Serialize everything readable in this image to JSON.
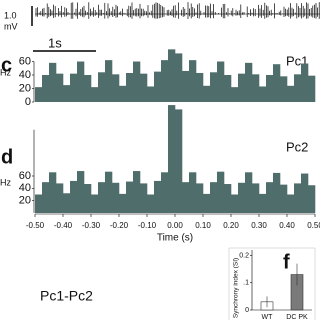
{
  "figure": {
    "scale_v_1": "1.0",
    "scale_v_2": "mV",
    "scale_t": "1s",
    "pair_label": "Pc1-Pc2"
  },
  "chart_data": [
    {
      "type": "histogram",
      "panel": "c",
      "label": "Pc1",
      "ylabel": "Hz",
      "color": "#4f6d6a",
      "bins": [
        -0.5,
        -0.475,
        -0.45,
        -0.425,
        -0.4,
        -0.375,
        -0.35,
        -0.325,
        -0.3,
        -0.275,
        -0.25,
        -0.225,
        -0.2,
        -0.175,
        -0.15,
        -0.125,
        -0.1,
        -0.075,
        -0.05,
        -0.025,
        0,
        0.025,
        0.05,
        0.075,
        0.1,
        0.125,
        0.15,
        0.175,
        0.2,
        0.225,
        0.25,
        0.275,
        0.3,
        0.325,
        0.35,
        0.375,
        0.4,
        0.425,
        0.45,
        0.475,
        0.5
      ],
      "values": [
        22,
        40,
        58,
        42,
        25,
        42,
        60,
        40,
        22,
        44,
        62,
        41,
        24,
        43,
        60,
        42,
        23,
        45,
        62,
        78,
        72,
        46,
        62,
        43,
        24,
        44,
        60,
        40,
        22,
        42,
        58,
        41,
        23,
        40,
        56,
        38,
        24,
        41,
        57,
        39
      ],
      "ylim": [
        0,
        80
      ],
      "yticks": [
        0,
        20,
        40,
        60
      ]
    },
    {
      "type": "histogram",
      "panel": "d",
      "label": "Pc2",
      "ylabel": "Hz",
      "xlabel": "Time (s)",
      "color": "#4f6d6a",
      "bins": [
        -0.5,
        -0.475,
        -0.45,
        -0.425,
        -0.4,
        -0.375,
        -0.35,
        -0.325,
        -0.3,
        -0.275,
        -0.25,
        -0.225,
        -0.2,
        -0.175,
        -0.15,
        -0.125,
        -0.1,
        -0.075,
        -0.05,
        -0.025,
        0,
        0.025,
        0.05,
        0.075,
        0.1,
        0.125,
        0.15,
        0.175,
        0.2,
        0.225,
        0.25,
        0.275,
        0.3,
        0.325,
        0.35,
        0.375,
        0.4,
        0.425,
        0.45,
        0.475,
        0.5
      ],
      "values": [
        30,
        50,
        66,
        48,
        32,
        52,
        68,
        47,
        30,
        50,
        67,
        49,
        31,
        51,
        68,
        48,
        30,
        52,
        66,
        175,
        168,
        50,
        66,
        48,
        31,
        50,
        67,
        47,
        30,
        49,
        66,
        48,
        31,
        50,
        65,
        46,
        30,
        48,
        64,
        45
      ],
      "ylim": [
        0,
        180
      ],
      "yticks": [
        20,
        40,
        60
      ],
      "xlim": [
        -0.5,
        0.5
      ],
      "xticks": [
        {
          "value": -0.5,
          "label": "-0.50"
        },
        {
          "value": -0.4,
          "label": "-0.40"
        },
        {
          "value": -0.3,
          "label": "-0.30"
        },
        {
          "value": -0.2,
          "label": "-0.20"
        },
        {
          "value": -0.1,
          "label": "-0.10"
        },
        {
          "value": 0,
          "label": "0.00"
        },
        {
          "value": 0.1,
          "label": "0.10"
        },
        {
          "value": 0.2,
          "label": "0.20"
        },
        {
          "value": 0.3,
          "label": "0.30"
        },
        {
          "value": 0.4,
          "label": "0.40"
        },
        {
          "value": 0.5,
          "label": "0.50"
        }
      ]
    },
    {
      "type": "bar",
      "panel": "f",
      "ylabel": "Synchrony index (SI)",
      "categories": [
        "WT",
        "DC PK"
      ],
      "values": [
        0.03,
        0.13
      ],
      "errors": [
        0.02,
        0.04
      ],
      "colors": [
        "#ffffff",
        "#7a7a7a"
      ],
      "ylim": [
        0,
        0.22
      ],
      "yticks": [
        0,
        {
          "value": 0.1,
          "label": ".1"
        },
        {
          "value": 0.2,
          "label": "0.2"
        }
      ]
    }
  ]
}
